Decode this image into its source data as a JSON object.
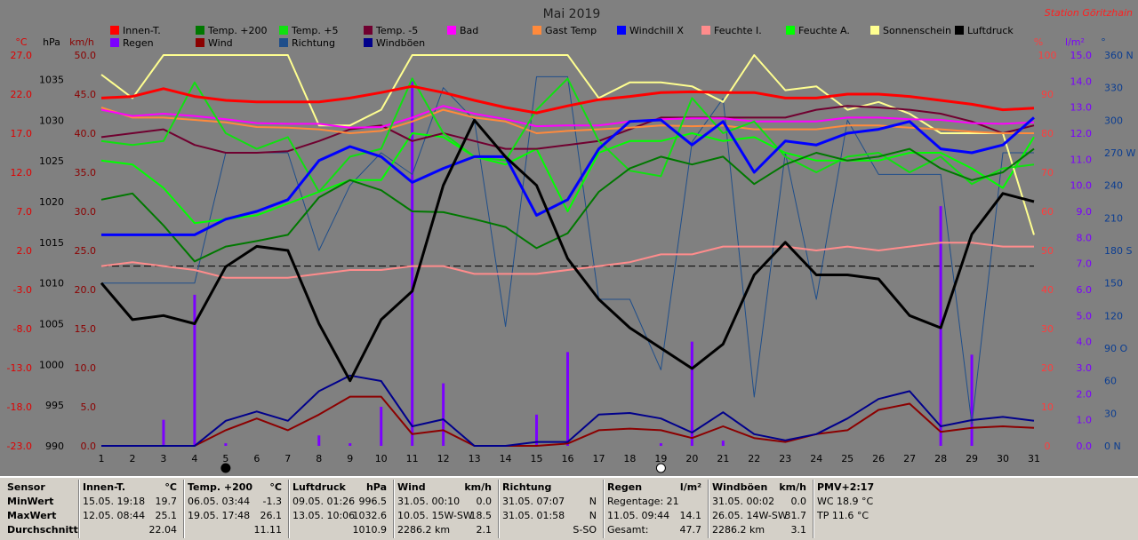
{
  "header": {
    "title": "Mai 2019",
    "station": "Station Göritzhain"
  },
  "axes_units": {
    "temp": "°C",
    "hpa": "hPa",
    "kmh": "km/h",
    "percent": "%",
    "rain": "l/m²",
    "dir": "°"
  },
  "colors": {
    "background": "#808080",
    "station": "#ff2020",
    "temp_axis": "#e00000",
    "hpa_axis": "#000000",
    "kmh_axis": "#8b0000",
    "percent_axis": "#ff3c3c",
    "rain_axis": "#7b00ff",
    "dir_axis": "#0b3d91"
  },
  "chart_data": {
    "type": "line",
    "title": "Mai 2019",
    "x": [
      1,
      2,
      3,
      4,
      5,
      6,
      7,
      8,
      9,
      10,
      11,
      12,
      13,
      14,
      15,
      16,
      17,
      18,
      19,
      20,
      21,
      22,
      23,
      24,
      25,
      26,
      27,
      28,
      29,
      30,
      31
    ],
    "xlim": [
      1,
      31
    ],
    "axes": {
      "temp_c": {
        "ylim": [
          -23,
          27
        ],
        "ticks": [
          "-23.0",
          "-18.0",
          "-13.0",
          "-8.0",
          "-3.0",
          "2.0",
          "7.0",
          "12.0",
          "17.0",
          "22.0",
          "27.0"
        ]
      },
      "hpa": {
        "ylim": [
          990,
          1038
        ],
        "ticks": [
          "990",
          "995",
          "1000",
          "1005",
          "1010",
          "1015",
          "1020",
          "1025",
          "1030",
          "1035"
        ]
      },
      "kmh": {
        "ylim": [
          0,
          50
        ],
        "ticks": [
          "0.0",
          "5.0",
          "10.0",
          "15.0",
          "20.0",
          "25.0",
          "30.0",
          "35.0",
          "40.0",
          "45.0",
          "50.0"
        ]
      },
      "percent": {
        "ylim": [
          0,
          100
        ],
        "ticks": [
          "0",
          "10",
          "20",
          "30",
          "40",
          "50",
          "60",
          "70",
          "80",
          "90",
          "100"
        ]
      },
      "rain": {
        "ylim": [
          0,
          15
        ],
        "ticks": [
          "0.0",
          "1.0",
          "2.0",
          "3.0",
          "4.0",
          "5.0",
          "6.0",
          "7.0",
          "8.0",
          "9.0",
          "10.0",
          "11.0",
          "12.0",
          "13.0",
          "14.0",
          "15.0"
        ]
      },
      "direction": {
        "ylim": [
          0,
          360
        ],
        "ticks": [
          "0 N",
          "30",
          "60",
          "90 O",
          "120",
          "150",
          "180 S",
          "210",
          "240",
          "270 W",
          "300",
          "330",
          "360 N"
        ]
      }
    },
    "reference_line_temp": 0,
    "moon_phases": [
      {
        "day": 5,
        "phase": "new"
      },
      {
        "day": 19,
        "phase": "full"
      }
    ],
    "series": [
      {
        "name": "Innen-T.",
        "color": "#ff0000",
        "axis": "temp_c",
        "width": 3,
        "values": [
          21.5,
          21.7,
          22.7,
          21.7,
          21.2,
          21.0,
          21.0,
          21.0,
          21.5,
          22.2,
          23.0,
          22.2,
          21.2,
          20.3,
          19.6,
          20.5,
          21.3,
          21.7,
          22.2,
          22.3,
          22.2,
          22.2,
          21.5,
          21.5,
          22.0,
          22.0,
          21.7,
          21.2,
          20.7,
          20.0,
          20.2
        ]
      },
      {
        "name": "Regen",
        "color": "#7b00ff",
        "axis": "rain",
        "type": "bar",
        "values": [
          0,
          0,
          1.0,
          5.8,
          0.1,
          0,
          0,
          0.4,
          0.1,
          1.5,
          14.1,
          2.4,
          0,
          0,
          1.2,
          3.6,
          0,
          0,
          0.1,
          4.0,
          0.2,
          0,
          0,
          0,
          0,
          0,
          0,
          9.2,
          3.5,
          0,
          0
        ]
      },
      {
        "name": "Temp. +200",
        "color": "#007800",
        "axis": "temp_c",
        "width": 2,
        "values": [
          8.5,
          9.3,
          5.2,
          0.6,
          2.5,
          3.2,
          4.0,
          8.8,
          11.0,
          9.7,
          7.0,
          6.9,
          6.0,
          5.0,
          2.3,
          4.2,
          9.5,
          12.5,
          14.0,
          13.0,
          14.0,
          10.5,
          13.0,
          14.5,
          13.5,
          14.0,
          15.0,
          12.5,
          11.0,
          12.0,
          15.0
        ]
      },
      {
        "name": "Wind",
        "color": "#8b0000",
        "axis": "kmh",
        "width": 2,
        "values": [
          0,
          0,
          0,
          0,
          2.0,
          3.5,
          2.0,
          4.0,
          6.3,
          6.3,
          1.5,
          2.0,
          0,
          0,
          0,
          0.3,
          2.0,
          2.2,
          2.0,
          1.0,
          2.5,
          1.0,
          0.5,
          1.5,
          2.0,
          4.6,
          5.4,
          1.8,
          2.3,
          2.5,
          2.3
        ]
      },
      {
        "name": "Temp. +5",
        "color": "#10e010",
        "axis": "temp_c",
        "width": 2,
        "values": [
          16.0,
          15.5,
          16.0,
          23.5,
          17.0,
          15.0,
          16.5,
          9.5,
          14.0,
          15.0,
          24.0,
          17.0,
          14.0,
          13.5,
          20.0,
          24.0,
          16.0,
          12.2,
          11.5,
          21.5,
          17.0,
          18.5,
          14.0,
          12.0,
          14.0,
          14.5,
          12.0,
          14.0,
          10.5,
          12.5,
          13.0
        ]
      },
      {
        "name": "Richtung",
        "color": "#1f4e8a",
        "axis": "direction",
        "width": 1,
        "values": [
          150,
          150,
          150,
          150,
          270,
          270,
          270,
          180,
          240,
          270,
          250,
          330,
          300,
          110,
          340,
          340,
          135,
          135,
          70,
          280,
          320,
          45,
          270,
          135,
          300,
          250,
          250,
          250,
          20,
          270,
          270
        ]
      },
      {
        "name": "Temp. -5",
        "color": "#700030",
        "axis": "temp_c",
        "width": 2,
        "values": [
          16.5,
          17.0,
          17.5,
          15.5,
          14.5,
          14.5,
          14.7,
          16.0,
          17.5,
          18.0,
          16.0,
          17.0,
          16.0,
          15.0,
          15.0,
          15.5,
          16.0,
          17.5,
          19.0,
          19.0,
          19.0,
          19.0,
          19.0,
          20.0,
          20.5,
          20.3,
          20.0,
          19.5,
          18.5,
          17.0,
          18.0
        ]
      },
      {
        "name": "Windböen",
        "color": "#00008b",
        "axis": "kmh",
        "width": 2,
        "values": [
          0,
          0,
          0,
          0,
          3.2,
          4.4,
          3.2,
          7.0,
          9.0,
          8.3,
          2.5,
          3.4,
          0,
          0,
          0.5,
          0.5,
          4.0,
          4.2,
          3.5,
          1.7,
          4.3,
          1.5,
          0.7,
          1.5,
          3.5,
          6.0,
          7.0,
          2.5,
          3.3,
          3.7,
          3.2
        ]
      },
      {
        "name": "Bad",
        "color": "#ff00ff",
        "axis": "temp_c",
        "width": 2,
        "values": [
          20.0,
          19.2,
          19.5,
          19.2,
          18.8,
          18.3,
          18.2,
          18.2,
          17.7,
          17.8,
          19.0,
          20.5,
          19.5,
          18.8,
          17.9,
          18.0,
          18.0,
          18.5,
          18.8,
          18.9,
          18.9,
          18.5,
          18.5,
          18.5,
          19.0,
          19.0,
          18.8,
          18.7,
          18.3,
          18.2,
          18.4
        ]
      },
      {
        "name": "Gast Temp",
        "color": "#ff8a3c",
        "axis": "temp_c",
        "width": 2,
        "values": [
          20.3,
          19.0,
          19.0,
          18.7,
          18.4,
          17.8,
          17.7,
          17.5,
          17.0,
          17.3,
          18.5,
          20.0,
          19.0,
          18.5,
          17.0,
          17.3,
          17.5,
          17.7,
          18.0,
          17.9,
          18.0,
          17.5,
          17.5,
          17.5,
          18.0,
          18.0,
          17.7,
          17.5,
          17.2,
          17.0,
          17.0
        ]
      },
      {
        "name": "Windchill X",
        "color": "#0000ff",
        "axis": "temp_c",
        "width": 3,
        "values": [
          4.0,
          4.0,
          4.0,
          4.0,
          6.0,
          7.0,
          8.5,
          13.5,
          15.3,
          14.0,
          10.7,
          12.5,
          14.0,
          14.0,
          6.5,
          8.5,
          15.0,
          18.5,
          18.7,
          15.5,
          18.5,
          12.0,
          16.0,
          15.5,
          17.0,
          17.5,
          18.5,
          15.0,
          14.5,
          15.5,
          19.0
        ]
      },
      {
        "name": "Feuchte I.",
        "color": "#ff8c8c",
        "axis": "percent",
        "width": 2,
        "values": [
          46,
          47,
          46,
          45,
          43,
          43,
          43,
          44,
          45,
          45,
          46,
          46,
          44,
          44,
          44,
          45,
          46,
          47,
          49,
          49,
          51,
          51,
          51,
          50,
          51,
          50,
          51,
          52,
          52,
          51,
          51
        ]
      },
      {
        "name": "Feuchte A.",
        "color": "#00ff00",
        "axis": "percent",
        "width": 2,
        "values": [
          73,
          72,
          66,
          57,
          58,
          59,
          62,
          65,
          68,
          68,
          80,
          79,
          74,
          72,
          76,
          60,
          75,
          78,
          78,
          80,
          78,
          79,
          75,
          73,
          73,
          73,
          75,
          75,
          71,
          66,
          79
        ]
      },
      {
        "name": "Sonnenschein",
        "color": "#ffff90",
        "axis": "percent",
        "width": 2,
        "values": [
          95,
          89,
          100,
          100,
          100,
          100,
          100,
          82,
          82,
          86,
          100,
          100,
          100,
          100,
          100,
          100,
          89,
          93,
          93,
          92,
          88,
          100,
          91,
          92,
          86,
          88,
          85,
          80,
          80,
          80,
          54
        ]
      },
      {
        "name": "Luftdruck",
        "color": "#000000",
        "axis": "hpa",
        "width": 3,
        "values": [
          1010.0,
          1005.5,
          1006.0,
          1005.0,
          1012.0,
          1014.5,
          1014.0,
          1005.0,
          998.0,
          1005.5,
          1009.0,
          1022.0,
          1030.0,
          1025.5,
          1022.0,
          1013.0,
          1008.0,
          1004.5,
          1002.0,
          999.5,
          1002.5,
          1011.0,
          1015.0,
          1011.0,
          1011.0,
          1010.5,
          1006.0,
          1004.5,
          1016.0,
          1021.0,
          1020.0
        ]
      }
    ]
  },
  "stats": {
    "row_labels": [
      "Sensor",
      "MinWert",
      "MaxWert",
      "Durchschnitt"
    ],
    "panels": [
      {
        "name": "Innen-T.",
        "unit": "°C",
        "min_time": "15.05.  19:18",
        "min_val": "19.7",
        "max_time": "12.05.  08:44",
        "max_val": "25.1",
        "avg": "22.04"
      },
      {
        "name": "Temp. +200",
        "unit": "°C",
        "min_time": "06.05.  03:44",
        "min_val": "-1.3",
        "max_time": "19.05.  17:48",
        "max_val": "26.1",
        "avg": "11.11"
      },
      {
        "name": "Luftdruck",
        "unit": "hPa",
        "min_time": "09.05.  01:26",
        "min_val": "996.5",
        "max_time": "13.05.  10:06",
        "max_val": "1032.6",
        "avg": "1010.9"
      },
      {
        "name": "Wind",
        "unit": "km/h",
        "min_time": "31.05.  00:10",
        "min_val": "0.0",
        "max_time": "10.05.  15W-SW",
        "max_val": "18.5",
        "avg_extra": "2286.2 km",
        "avg": "2.1"
      },
      {
        "name": "Richtung",
        "unit": "",
        "min_time": "31.05.  07:07",
        "min_val": "N",
        "max_time": "31.05.  01:58",
        "max_val": "N",
        "avg": "S-SO"
      },
      {
        "name": "Regen",
        "unit": "l/m²",
        "min_time": "Regentage: 21",
        "min_val": "",
        "max_time": "11.05.  09:44",
        "max_val": "14.1",
        "avg_extra": "Gesamt:",
        "avg": "47.7"
      },
      {
        "name": "Windböen",
        "unit": "km/h",
        "min_time": "31.05.  00:02",
        "min_val": "0.0",
        "max_time": "26.05.  14W-SW",
        "max_val": "31.7",
        "avg_extra": "2286.2 km",
        "avg": "3.1"
      },
      {
        "name": "PMV+2:17",
        "unit": "",
        "min_time": "WC 18.9 °C",
        "min_val": "",
        "max_time": "TP 11.6 °C",
        "max_val": "",
        "avg": ""
      }
    ]
  }
}
